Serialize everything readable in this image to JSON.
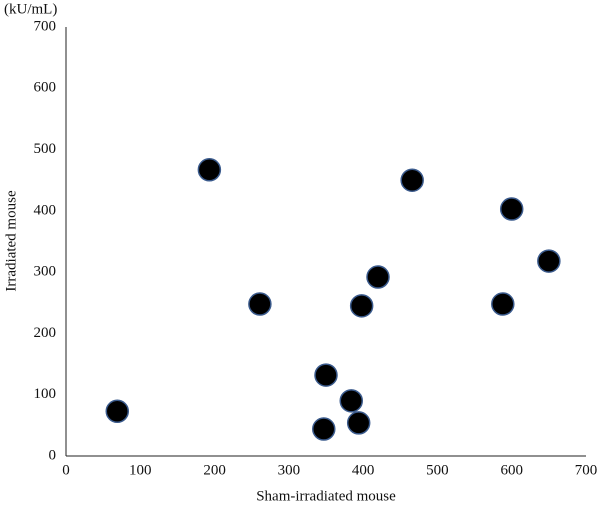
{
  "chart_data": {
    "type": "scatter",
    "unit_label": "(kU/mL)",
    "xlabel": "Sham-irradiated mouse",
    "ylabel": "Irradiated mouse",
    "x": [
      69,
      193,
      261,
      350,
      384,
      347,
      394,
      398,
      420,
      466,
      588,
      600,
      650
    ],
    "values": [
      73,
      467,
      248,
      132,
      90,
      44,
      54,
      245,
      292,
      450,
      248,
      403,
      318
    ],
    "color": "#000000",
    "edge_color": "#3a5a8c",
    "xlim": [
      0,
      700
    ],
    "xticks": [
      0,
      100,
      200,
      300,
      400,
      500,
      600,
      700
    ],
    "ylim": [
      0,
      700
    ],
    "yticks": [
      0,
      100,
      200,
      300,
      400,
      500,
      600,
      700
    ],
    "grid": false
  }
}
